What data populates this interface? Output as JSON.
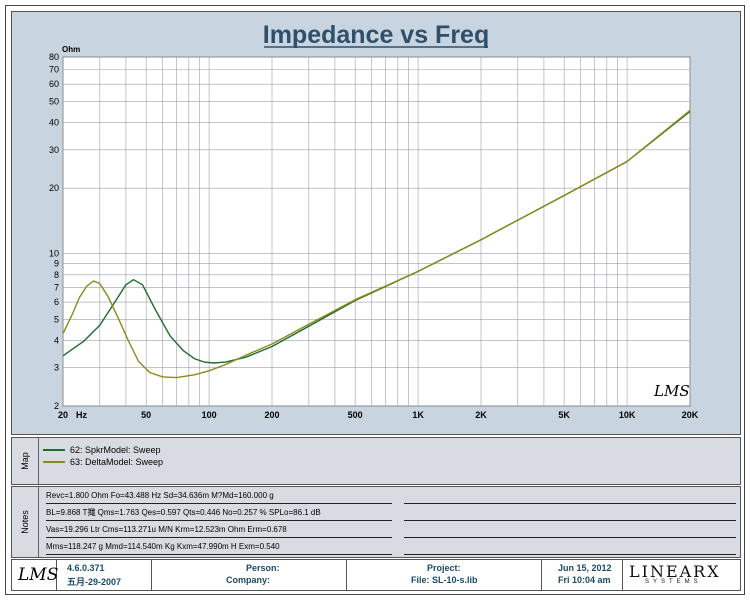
{
  "chart_data": {
    "type": "line",
    "title": "Impedance vs Freq",
    "y_unit": "Ohm",
    "x_scale": "log",
    "y_scale": "log",
    "xlim": [
      20,
      20000
    ],
    "ylim": [
      2,
      80
    ],
    "x_ticks": [
      {
        "value": 20,
        "label": "20"
      },
      {
        "value": 50,
        "label": "50"
      },
      {
        "value": 100,
        "label": "100"
      },
      {
        "value": 200,
        "label": "200"
      },
      {
        "value": 500,
        "label": "500"
      },
      {
        "value": 1000,
        "label": "1K"
      },
      {
        "value": 2000,
        "label": "2K"
      },
      {
        "value": 5000,
        "label": "5K"
      },
      {
        "value": 10000,
        "label": "10K"
      },
      {
        "value": 20000,
        "label": "20K"
      }
    ],
    "x_unit_label": "Hz",
    "y_ticks": [
      {
        "value": 2,
        "label": "2"
      },
      {
        "value": 3,
        "label": "3"
      },
      {
        "value": 4,
        "label": "4"
      },
      {
        "value": 5,
        "label": "5"
      },
      {
        "value": 6,
        "label": "6"
      },
      {
        "value": 7,
        "label": "7"
      },
      {
        "value": 8,
        "label": "8"
      },
      {
        "value": 9,
        "label": "9"
      },
      {
        "value": 10,
        "label": "10"
      },
      {
        "value": 20,
        "label": "20"
      },
      {
        "value": 30,
        "label": "30"
      },
      {
        "value": 40,
        "label": "40"
      },
      {
        "value": 50,
        "label": "50"
      },
      {
        "value": 60,
        "label": "60"
      },
      {
        "value": 70,
        "label": "70"
      },
      {
        "value": 80,
        "label": "80"
      }
    ],
    "grid": true,
    "watermark": "LMS",
    "series": [
      {
        "name": "62: SpkrModel: Sweep",
        "color": "#1f6b2e",
        "points": [
          [
            20,
            3.4
          ],
          [
            25,
            3.95
          ],
          [
            30,
            4.7
          ],
          [
            35,
            5.9
          ],
          [
            40,
            7.2
          ],
          [
            43.5,
            7.6
          ],
          [
            48,
            7.2
          ],
          [
            55,
            5.6
          ],
          [
            65,
            4.2
          ],
          [
            75,
            3.6
          ],
          [
            85,
            3.3
          ],
          [
            95,
            3.18
          ],
          [
            105,
            3.15
          ],
          [
            120,
            3.18
          ],
          [
            150,
            3.35
          ],
          [
            200,
            3.75
          ],
          [
            300,
            4.65
          ],
          [
            500,
            6.1
          ],
          [
            1000,
            8.3
          ],
          [
            2000,
            11.6
          ],
          [
            5000,
            18.5
          ],
          [
            10000,
            26.5
          ],
          [
            20000,
            45
          ]
        ]
      },
      {
        "name": "63: DeltaModel: Sweep",
        "color": "#8a8a1c",
        "points": [
          [
            20,
            4.3
          ],
          [
            22,
            5.2
          ],
          [
            24,
            6.3
          ],
          [
            26,
            7.1
          ],
          [
            28,
            7.5
          ],
          [
            30,
            7.3
          ],
          [
            33,
            6.3
          ],
          [
            37,
            5.0
          ],
          [
            41,
            4.0
          ],
          [
            46,
            3.2
          ],
          [
            52,
            2.85
          ],
          [
            60,
            2.72
          ],
          [
            70,
            2.7
          ],
          [
            85,
            2.78
          ],
          [
            100,
            2.9
          ],
          [
            120,
            3.1
          ],
          [
            150,
            3.42
          ],
          [
            200,
            3.85
          ],
          [
            300,
            4.75
          ],
          [
            500,
            6.15
          ],
          [
            1000,
            8.3
          ],
          [
            2000,
            11.6
          ],
          [
            5000,
            18.5
          ],
          [
            10000,
            26.5
          ],
          [
            20000,
            45.5
          ]
        ]
      }
    ],
    "legend_position": "map-panel"
  },
  "panels": {
    "map_label": "Map",
    "notes_label": "Notes"
  },
  "notes": [
    "Revc=1.800 Ohm  Fo=43.488 Hz  Sd=34.636m M?Md=160.000 g",
    "BL=9.868 T擑  Qms=1.763  Qes=0.597  Qts=0.446  No=0.257 %  SPLo=86.1 dB",
    "Vas=19.296 Ltr  Cms=113.271u M/N  Krm=12.523m Ohm  Erm=0.678",
    "Mms=118.247 g  Mmd=114.540m Kg  Kxm=47.990m H  Exm=0.540"
  ],
  "footer": {
    "logo": "LMS",
    "version": "4.6.0.371",
    "version_date": "五月-29-2007",
    "person_label": "Person:",
    "company_label": "Company:",
    "project_label": "Project:",
    "file_label": "File: SL-10-s.lib",
    "date": "Jun 15, 2012",
    "time": "Fri 10:04 am",
    "brand": "LINEARX",
    "brand_sub": "SYSTEMS"
  }
}
